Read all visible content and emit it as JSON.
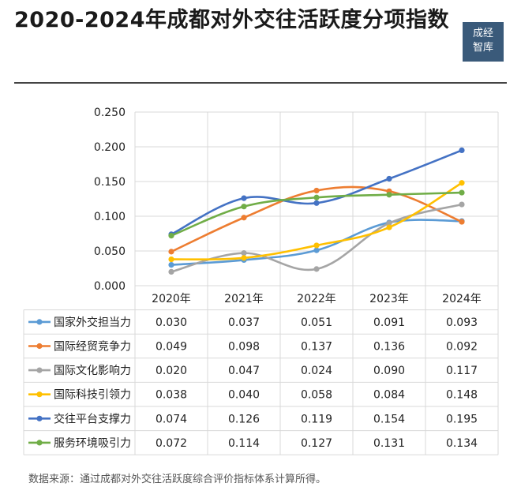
{
  "header": {
    "title": "2020-2024年成都对外交往活跃度分项指数",
    "logo_text": "成经智库"
  },
  "footer": {
    "source": "数据来源：通过成都对外交往活跃度综合评价指标体系计算所得。"
  },
  "chart_data": {
    "type": "line",
    "categories": [
      "2020年",
      "2021年",
      "2022年",
      "2023年",
      "2024年"
    ],
    "y_ticks": [
      "0.000",
      "0.050",
      "0.100",
      "0.150",
      "0.200",
      "0.250"
    ],
    "ylim": [
      0,
      0.25
    ],
    "grid": true,
    "legend": "data-table",
    "series": [
      {
        "name": "国家外交担当力",
        "color": "#5b9bd5",
        "values": [
          0.03,
          0.037,
          0.051,
          0.091,
          0.093
        ],
        "labels": [
          "0.030",
          "0.037",
          "0.051",
          "0.091",
          "0.093"
        ]
      },
      {
        "name": "国际经贸竞争力",
        "color": "#ed7d31",
        "values": [
          0.049,
          0.098,
          0.137,
          0.136,
          0.092
        ],
        "labels": [
          "0.049",
          "0.098",
          "0.137",
          "0.136",
          "0.092"
        ]
      },
      {
        "name": "国际文化影响力",
        "color": "#a5a5a5",
        "values": [
          0.02,
          0.047,
          0.024,
          0.09,
          0.117
        ],
        "labels": [
          "0.020",
          "0.047",
          "0.024",
          "0.090",
          "0.117"
        ]
      },
      {
        "name": "国际科技引领力",
        "color": "#ffc000",
        "values": [
          0.038,
          0.04,
          0.058,
          0.084,
          0.148
        ],
        "labels": [
          "0.038",
          "0.040",
          "0.058",
          "0.084",
          "0.148"
        ]
      },
      {
        "name": "交往平台支撑力",
        "color": "#4472c4",
        "values": [
          0.074,
          0.126,
          0.119,
          0.154,
          0.195
        ],
        "labels": [
          "0.074",
          "0.126",
          "0.119",
          "0.154",
          "0.195"
        ]
      },
      {
        "name": "服务环境吸引力",
        "color": "#70ad47",
        "values": [
          0.072,
          0.114,
          0.127,
          0.131,
          0.134
        ],
        "labels": [
          "0.072",
          "0.114",
          "0.127",
          "0.131",
          "0.134"
        ]
      }
    ]
  }
}
